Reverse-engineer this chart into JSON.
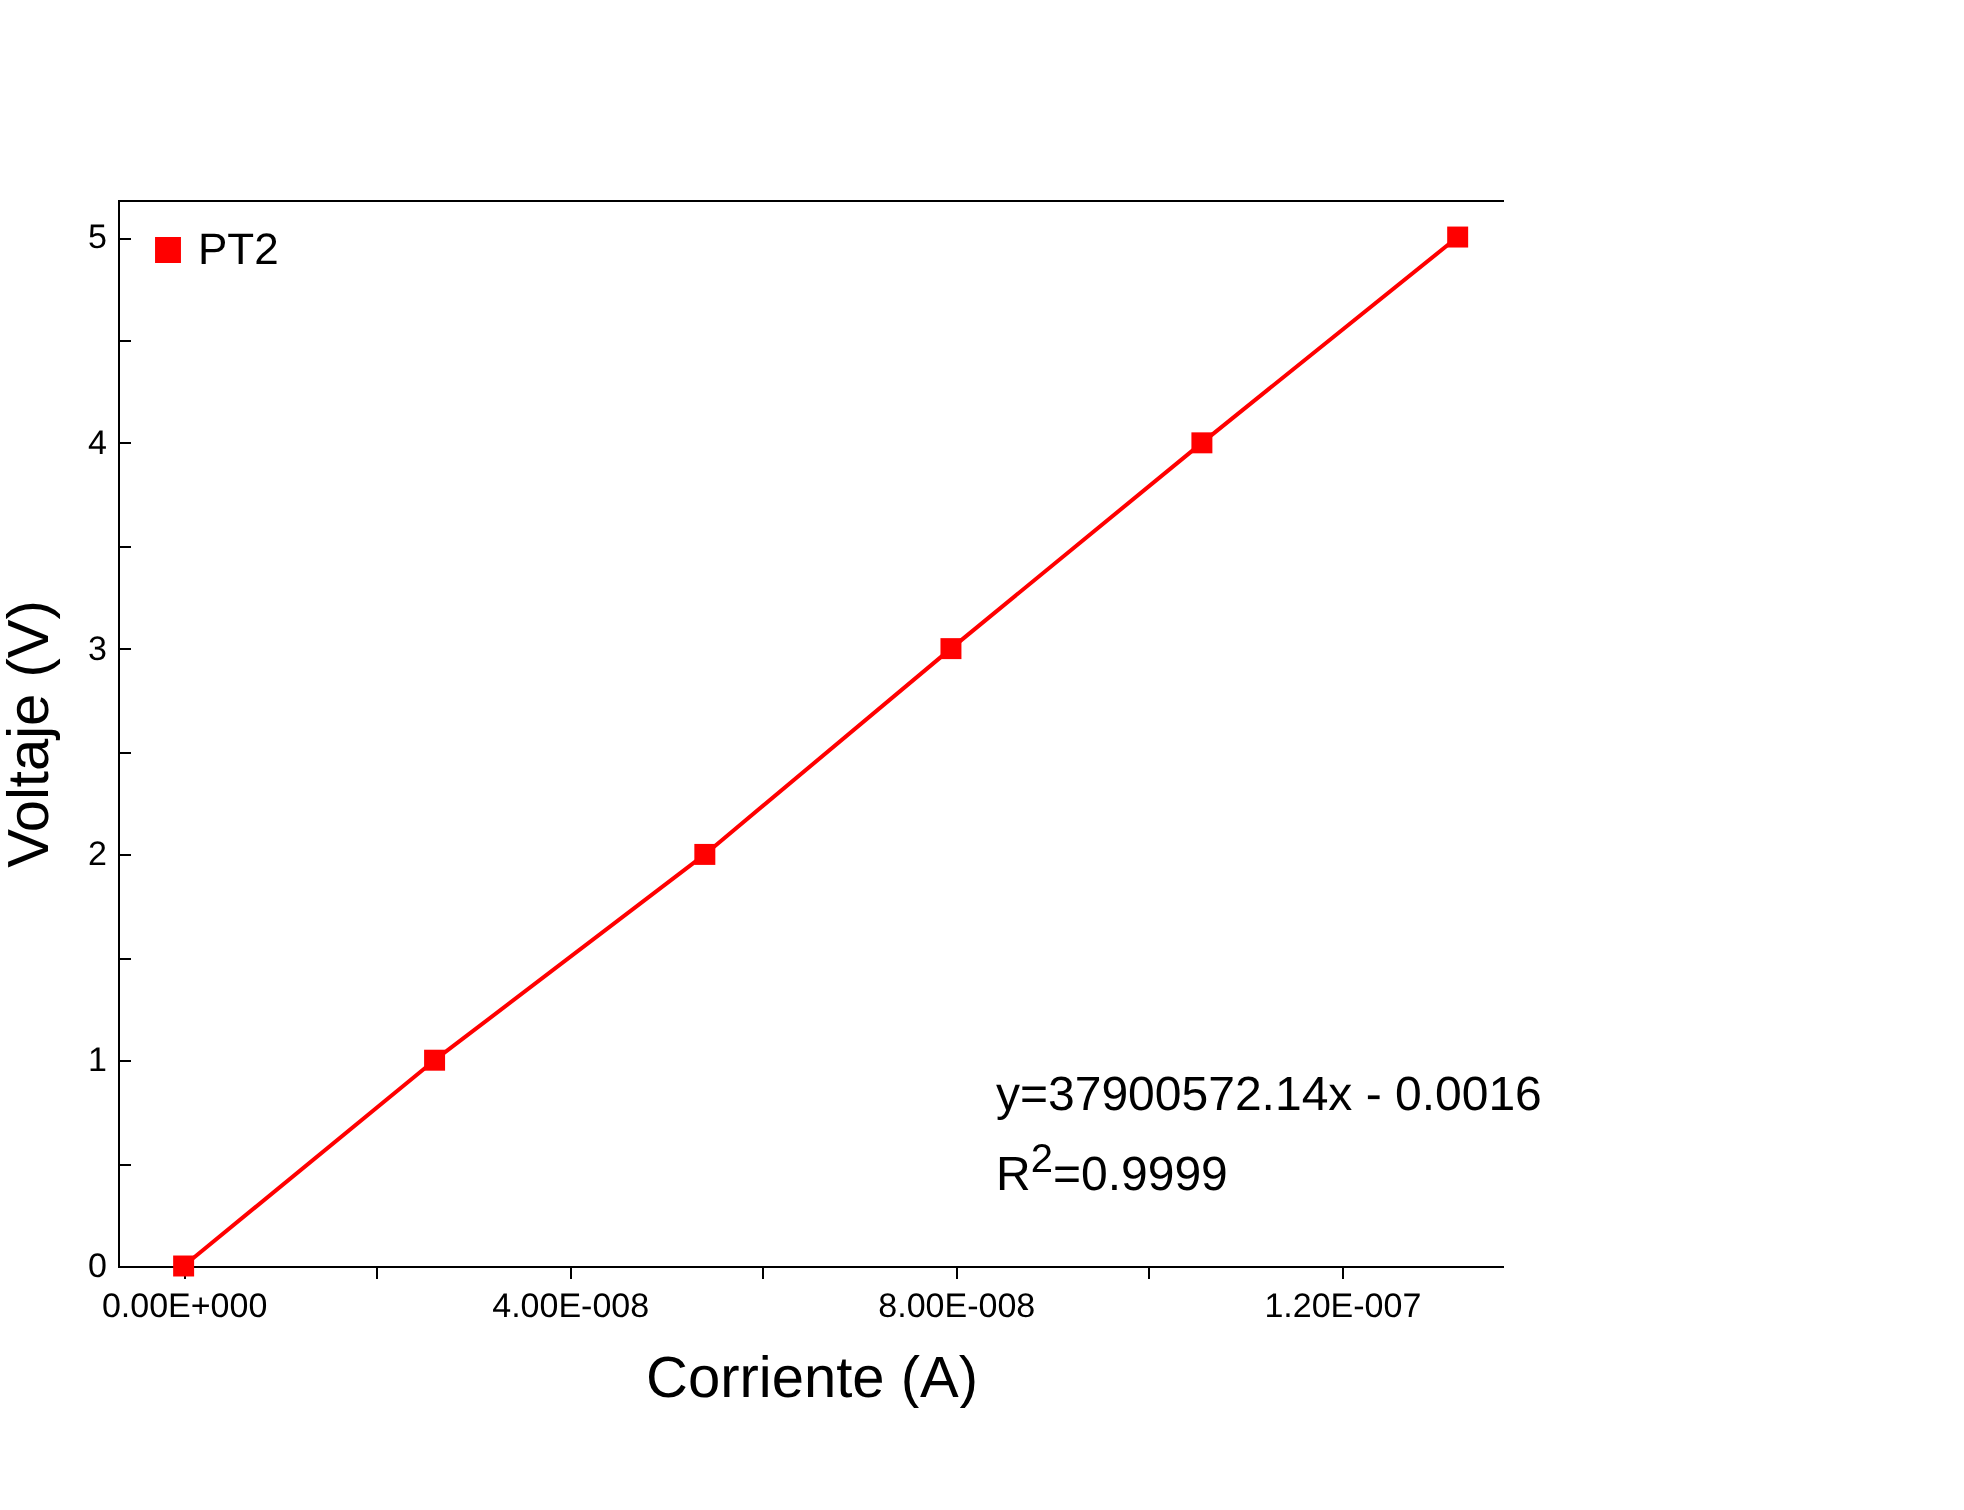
{
  "chart_data": {
    "type": "line",
    "xlabel": "Corriente (A)",
    "ylabel": "Voltaje (V)",
    "x": [
      0,
      2.6e-08,
      5.4e-08,
      7.95e-08,
      1.055e-07,
      1.32e-07
    ],
    "series": [
      {
        "name": "PT2",
        "color": "#ff0000",
        "values": [
          0,
          1,
          2,
          3,
          4,
          5
        ]
      }
    ],
    "xlim": [
      -6.8e-09,
      1.368e-07
    ],
    "xticks": [
      {
        "value": 0,
        "label": "0.00E+000"
      },
      {
        "value": 2e-08,
        "label": null
      },
      {
        "value": 4e-08,
        "label": "4.00E-008"
      },
      {
        "value": 6e-08,
        "label": null
      },
      {
        "value": 8e-08,
        "label": "8.00E-008"
      },
      {
        "value": 1e-07,
        "label": null
      },
      {
        "value": 1.2e-07,
        "label": "1.20E-007"
      }
    ],
    "ylim": [
      0,
      5.18
    ],
    "yticks": [
      0,
      {
        "value": 0.5,
        "label": null
      },
      1,
      {
        "value": 1.5,
        "label": null
      },
      2,
      {
        "value": 2.5,
        "label": null
      },
      3,
      {
        "value": 3.5,
        "label": null
      },
      4,
      {
        "value": 4.5,
        "label": null
      },
      5
    ],
    "marker": "square",
    "line_style": "solid",
    "grid": false,
    "legend": "top left",
    "annotations": [
      "y=37900572.14x - 0.0016",
      "R$^{2}$=0.9999"
    ]
  }
}
